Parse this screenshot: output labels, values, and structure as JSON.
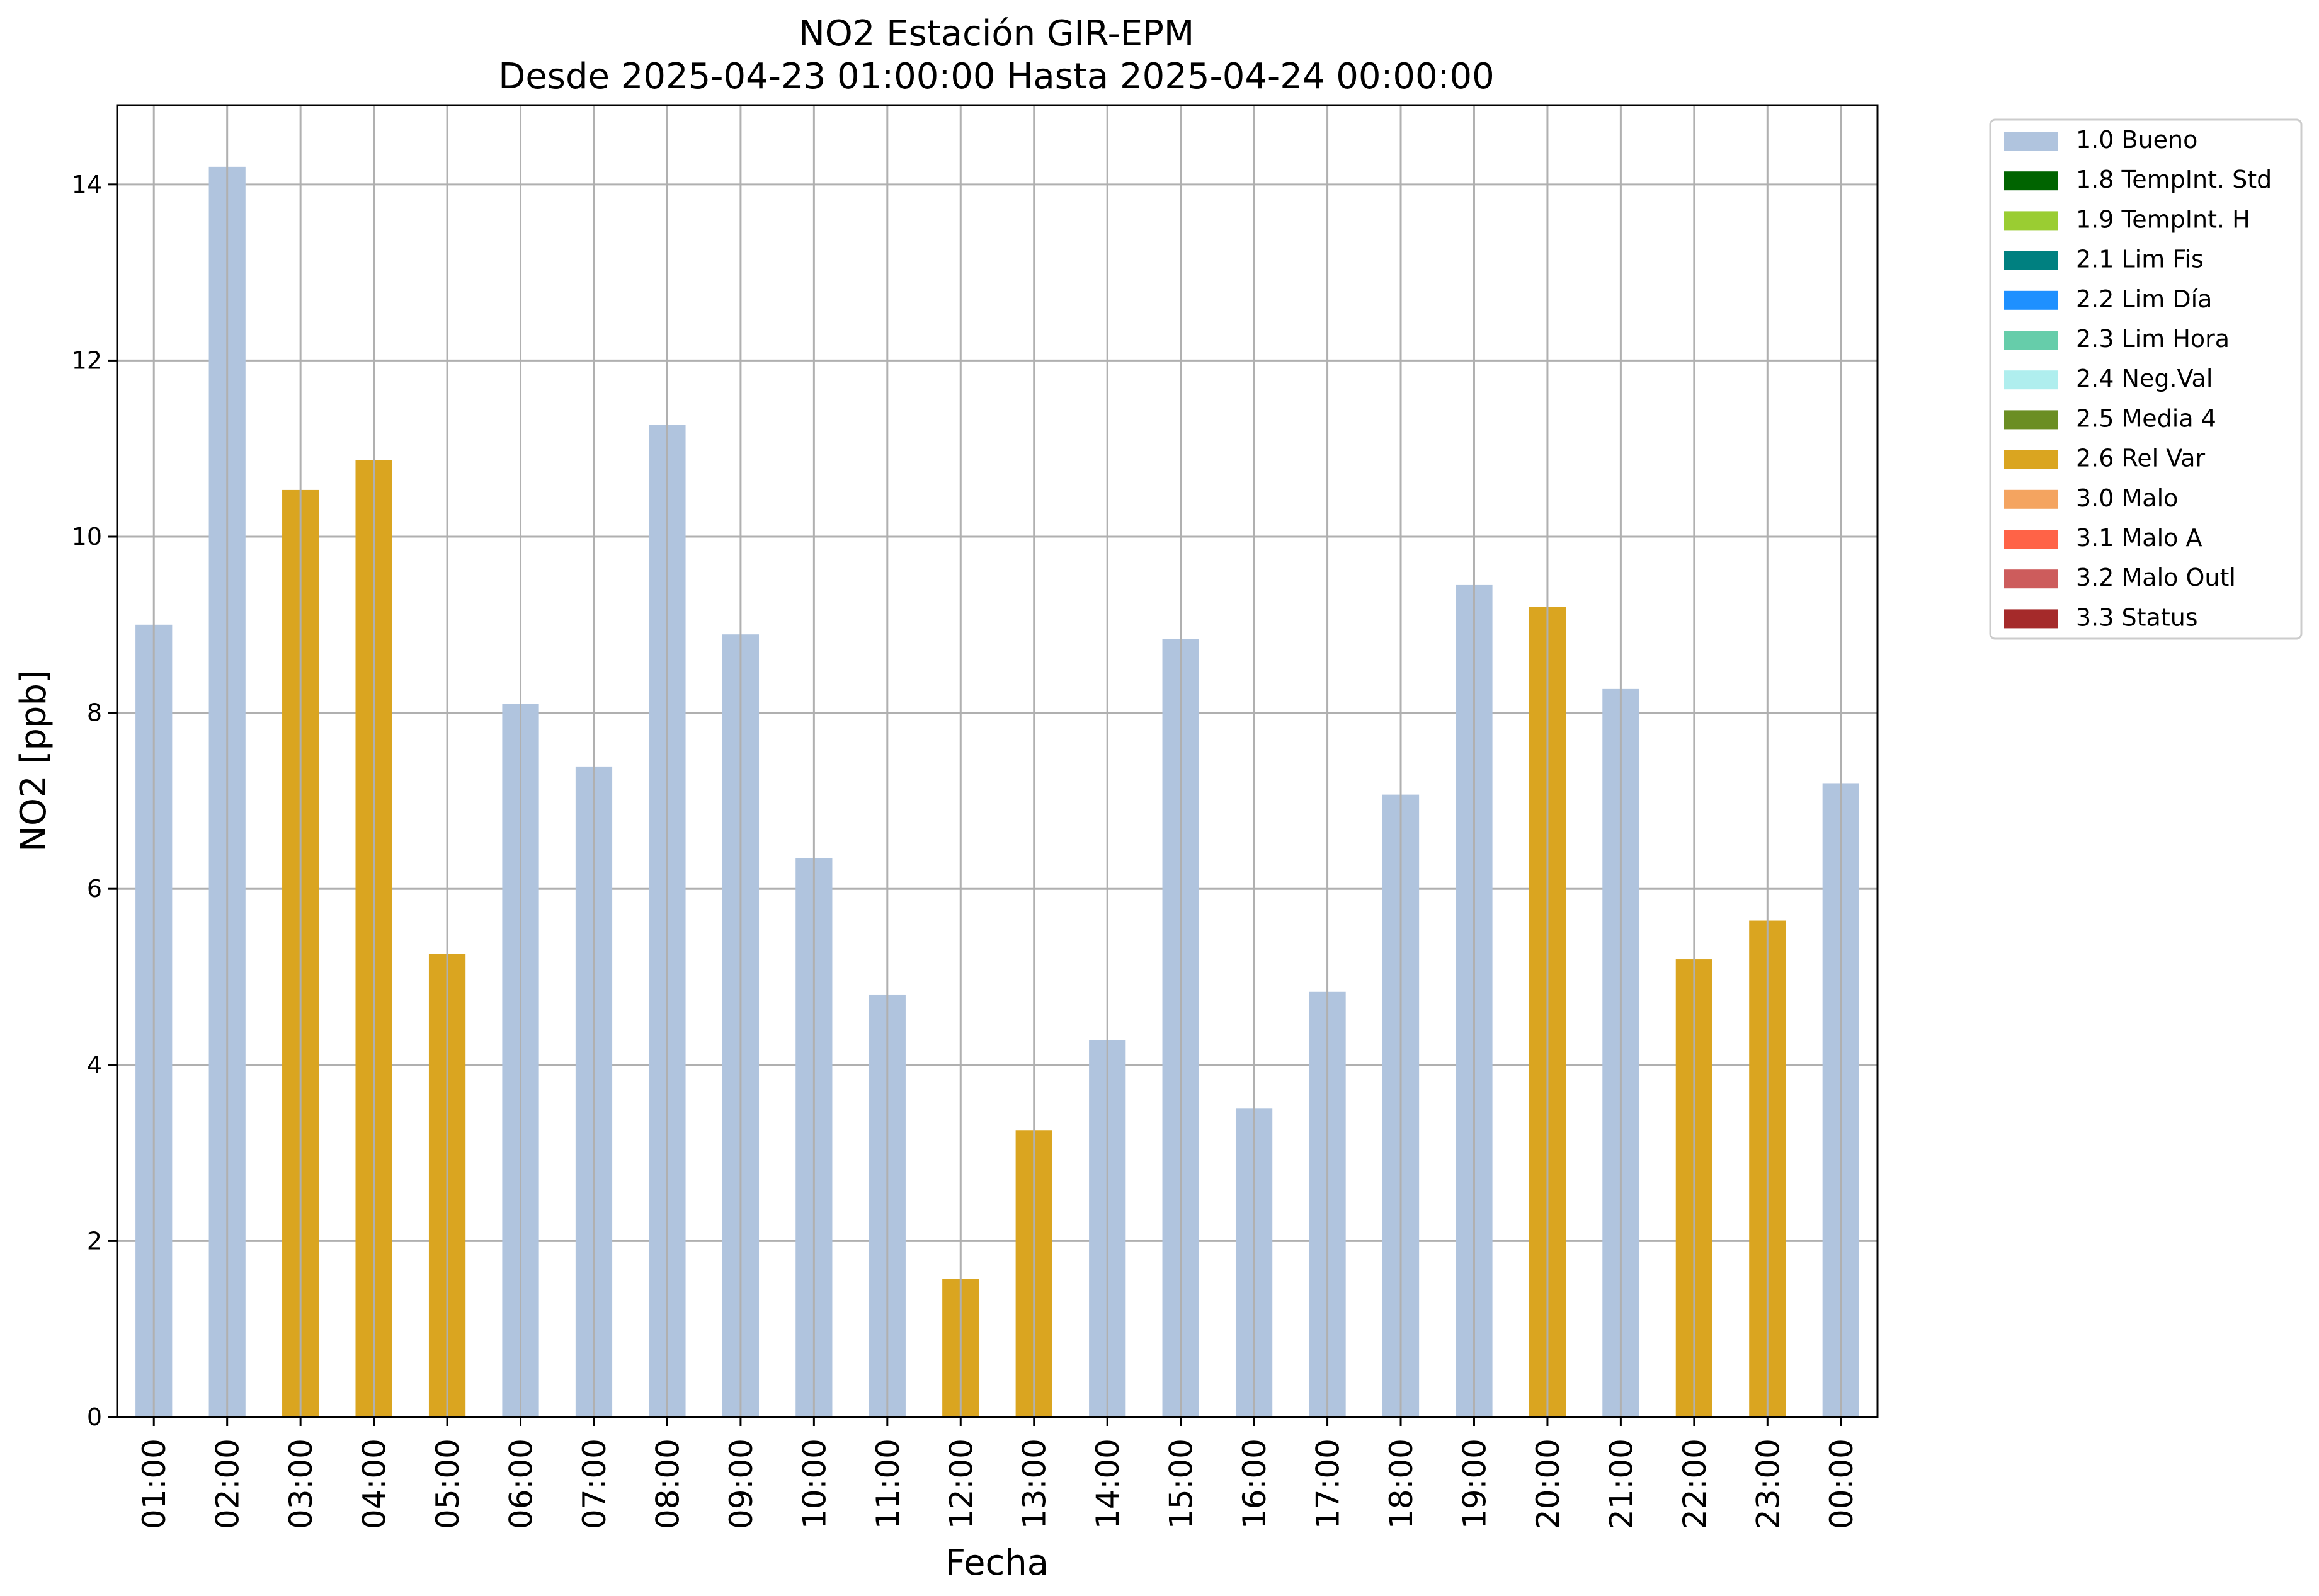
{
  "chart_data": {
    "type": "bar",
    "title": "NO2 Estación GIR-EPM",
    "subtitle": "Desde 2025-04-23 01:00:00 Hasta 2025-04-24 00:00:00",
    "xlabel": "Fecha",
    "ylabel": "NO2 [ppb]",
    "ylim": [
      0,
      14.9
    ],
    "yticks": [
      0,
      2,
      4,
      6,
      8,
      10,
      12,
      14
    ],
    "grid": true,
    "legend_position": "outside-top-right",
    "categories": [
      "01:00",
      "02:00",
      "03:00",
      "04:00",
      "05:00",
      "06:00",
      "07:00",
      "08:00",
      "09:00",
      "10:00",
      "11:00",
      "12:00",
      "13:00",
      "14:00",
      "15:00",
      "16:00",
      "17:00",
      "18:00",
      "19:00",
      "20:00",
      "21:00",
      "22:00",
      "23:00",
      "00:00"
    ],
    "values": [
      9.0,
      14.2,
      10.53,
      10.87,
      5.26,
      8.1,
      7.39,
      11.27,
      8.89,
      6.35,
      4.8,
      1.57,
      3.26,
      4.28,
      8.84,
      3.51,
      4.83,
      7.07,
      9.45,
      9.2,
      8.27,
      5.2,
      5.64,
      7.2
    ],
    "flags": [
      "1.0 Bueno",
      "1.0 Bueno",
      "2.6 Rel Var",
      "2.6 Rel Var",
      "2.6 Rel Var",
      "1.0 Bueno",
      "1.0 Bueno",
      "1.0 Bueno",
      "1.0 Bueno",
      "1.0 Bueno",
      "1.0 Bueno",
      "2.6 Rel Var",
      "2.6 Rel Var",
      "1.0 Bueno",
      "1.0 Bueno",
      "1.0 Bueno",
      "1.0 Bueno",
      "1.0 Bueno",
      "1.0 Bueno",
      "2.6 Rel Var",
      "1.0 Bueno",
      "2.6 Rel Var",
      "2.6 Rel Var",
      "1.0 Bueno"
    ],
    "legend": [
      {
        "label": "1.0 Bueno",
        "color": "#b0c4de"
      },
      {
        "label": "1.8 TempInt. Std",
        "color": "#006400"
      },
      {
        "label": "1.9 TempInt. H",
        "color": "#9acd32"
      },
      {
        "label": "2.1 Lim Fis",
        "color": "#008080"
      },
      {
        "label": "2.2 Lim Día",
        "color": "#1e90ff"
      },
      {
        "label": "2.3 Lim Hora",
        "color": "#66cdaa"
      },
      {
        "label": "2.4 Neg.Val",
        "color": "#afeeee"
      },
      {
        "label": "2.5 Media 4",
        "color": "#6b8e23"
      },
      {
        "label": "2.6 Rel Var",
        "color": "#daa520"
      },
      {
        "label": "3.0 Malo",
        "color": "#f4a460"
      },
      {
        "label": "3.1 Malo A",
        "color": "#ff6347"
      },
      {
        "label": "3.2 Malo Outl",
        "color": "#cd5c5c"
      },
      {
        "label": "3.3 Status",
        "color": "#a52a2a"
      }
    ]
  }
}
